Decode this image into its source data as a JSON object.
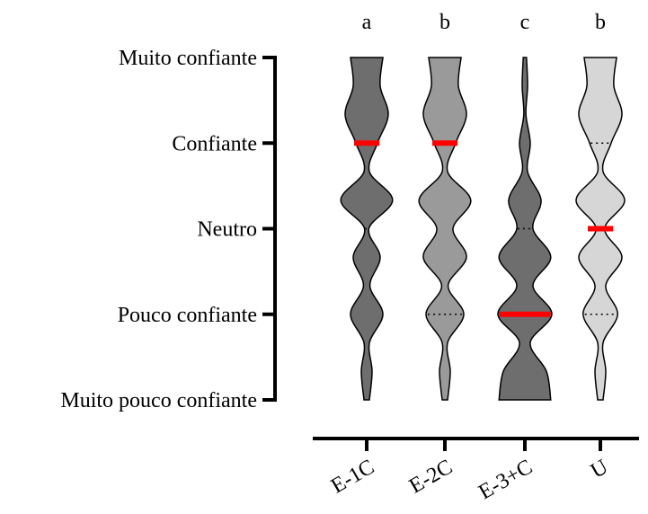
{
  "chart_data": {
    "type": "violin",
    "y_ticks": [
      "Muito confiante",
      "Confiante",
      "Neutro",
      "Pouco confiante",
      "Muito pouco confiante"
    ],
    "categories": [
      "E-1C",
      "E-2C",
      "E-3+C",
      "U"
    ],
    "significance_letters": [
      "a",
      "b",
      "c",
      "b"
    ],
    "series": [
      {
        "category": "E-1C",
        "fill": "#6e6e6e",
        "median": 4,
        "quartiles": [
          3,
          4
        ],
        "density": [
          0.05,
          0.1,
          0.05,
          0.3,
          0.06,
          0.25,
          0.04,
          0.48,
          0.05,
          0.2,
          0.4,
          0.25,
          0.3
        ]
      },
      {
        "category": "E-2C",
        "fill": "#9a9a9a",
        "median": 4,
        "quartiles": [
          2,
          4
        ],
        "density": [
          0.05,
          0.1,
          0.05,
          0.35,
          0.06,
          0.4,
          0.15,
          0.48,
          0.05,
          0.2,
          0.4,
          0.25,
          0.3
        ]
      },
      {
        "category": "E-3+C",
        "fill": "#6e6e6e",
        "median": 2,
        "quartiles": [
          2,
          3
        ],
        "density": [
          0.48,
          0.4,
          0.1,
          0.5,
          0.15,
          0.48,
          0.15,
          0.3,
          0.05,
          0.1,
          0.02,
          0.05,
          0.03
        ]
      },
      {
        "category": "U",
        "fill": "#d6d6d6",
        "median": 3,
        "quartiles": [
          2,
          4
        ],
        "density": [
          0.05,
          0.1,
          0.05,
          0.32,
          0.1,
          0.4,
          0.08,
          0.45,
          0.05,
          0.2,
          0.4,
          0.25,
          0.3
        ]
      }
    ],
    "median_color": "#ff0000",
    "ylim": [
      1,
      5
    ],
    "grid": false,
    "legend": "none"
  }
}
